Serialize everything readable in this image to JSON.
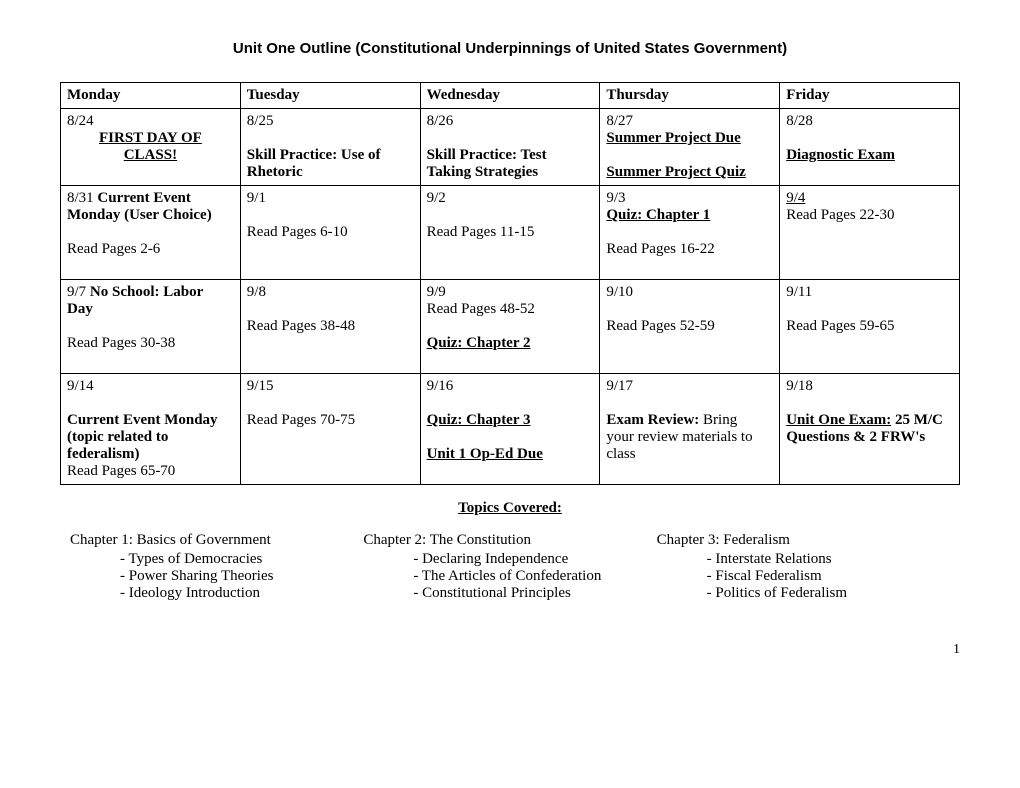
{
  "title": "Unit One Outline (Constitutional Underpinnings of United States Government)",
  "headers": [
    "Monday",
    "Tuesday",
    "Wednesday",
    "Thursday",
    "Friday"
  ],
  "row1": {
    "mon_date": "8/24",
    "mon_line1": "FIRST DAY OF",
    "mon_line2": "CLASS!",
    "tue_date": "8/25",
    "tue_bold1": "Skill Practice: Use of",
    "tue_bold2": "Rhetoric",
    "wed_date": "8/26",
    "wed_bold1": "Skill Practice: Test",
    "wed_bold2": "Taking Strategies",
    "thu_date": "8/27",
    "thu_bu1": "Summer Project Due",
    "thu_bu2": "Summer Project Quiz",
    "fri_date": "8/28",
    "fri_bu1": "Diagnostic Exam"
  },
  "row2": {
    "mon_date": "8/31",
    "mon_bold1": "Current Event",
    "mon_bold2": "Monday (User Choice)",
    "mon_read": "Read Pages 2-6",
    "tue_date": "9/1",
    "tue_read": "Read Pages 6-10",
    "wed_date": "9/2",
    "wed_read": "Read Pages 11-15",
    "thu_date": "9/3",
    "thu_quiz": "Quiz: Chapter 1",
    "thu_read": "Read Pages 16-22",
    "fri_date": "9/4",
    "fri_read": "Read Pages 22-30"
  },
  "row3": {
    "mon_date": "9/7",
    "mon_bold1": "No School: Labor",
    "mon_bold2": "Day",
    "mon_read": "Read Pages 30-38",
    "tue_date": "9/8",
    "tue_read": "Read Pages 38-48",
    "wed_date": "9/9",
    "wed_read": "Read Pages 48-52",
    "wed_quiz": "Quiz: Chapter 2",
    "thu_date": "9/10",
    "thu_read": "Read Pages 52-59",
    "fri_date": "9/11",
    "fri_read": "Read Pages 59-65"
  },
  "row4": {
    "mon_date": "9/14",
    "mon_bold1": "Current Event Monday",
    "mon_bold2": "(topic related to",
    "mon_bold3": "federalism)",
    "mon_read": "Read Pages 65-70",
    "tue_date": "9/15",
    "tue_read": "Read Pages 70-75",
    "wed_date": "9/16",
    "wed_quiz": " Quiz: Chapter 3",
    "wed_oped": "Unit 1 Op-Ed Due",
    "thu_date": "9/17",
    "thu_bold": "Exam Review:",
    "thu_rest1": "Bring",
    "thu_rest2": "your review materials to",
    "thu_rest3": "class",
    "fri_date": "9/18",
    "fri_bold": "Unit One Exam:",
    "fri_rest1": "25 M/C",
    "fri_rest2": "Questions & 2 FRW's"
  },
  "topics_header": "Topics Covered:",
  "topics": {
    "c1_title": "Chapter 1: Basics of Government",
    "c1_s1": "- Types of Democracies",
    "c1_s2": "- Power Sharing Theories",
    "c1_s3": "- Ideology Introduction",
    "c2_title": "Chapter 2: The Constitution",
    "c2_s1": "- Declaring Independence",
    "c2_s2": "- The Articles of Confederation",
    "c2_s3": "- Constitutional Principles",
    "c3_title": "Chapter 3: Federalism",
    "c3_s1": "- Interstate Relations",
    "c3_s2": "- Fiscal Federalism",
    "c3_s3": "- Politics of Federalism"
  },
  "page_num": "1"
}
